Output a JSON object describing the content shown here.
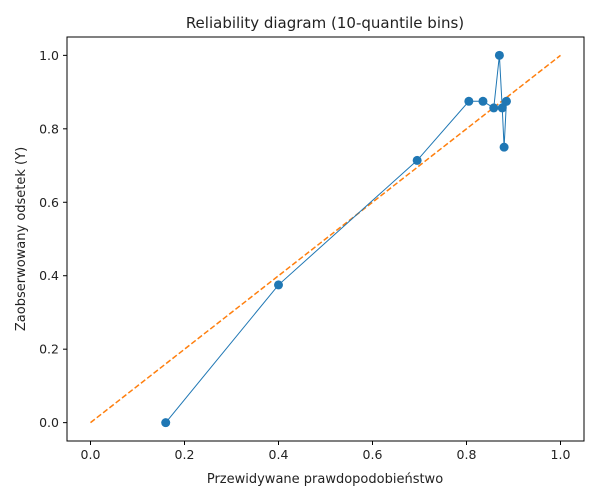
{
  "chart_data": {
    "type": "line",
    "title": "Reliability diagram (10-quantile bins)",
    "xlabel": "Przewidywane prawdopodobieństwo",
    "ylabel": "Zaobserwowany odsetek (Y)",
    "xlim": [
      -0.05,
      1.05
    ],
    "ylim": [
      -0.05,
      1.05
    ],
    "xticks": [
      "0.0",
      "0.2",
      "0.4",
      "0.6",
      "0.8",
      "1.0"
    ],
    "yticks": [
      "0.0",
      "0.2",
      "0.4",
      "0.6",
      "0.8",
      "1.0"
    ],
    "grid": false,
    "legend": "none",
    "series": [
      {
        "style": "line-markers",
        "color": "#1f77b4",
        "x": [
          0.16,
          0.4,
          0.695,
          0.805,
          0.835,
          0.858,
          0.87,
          0.876,
          0.88,
          0.885
        ],
        "y": [
          0.0,
          0.375,
          0.714,
          0.875,
          0.875,
          0.857,
          1.0,
          0.857,
          0.75,
          0.875
        ]
      },
      {
        "style": "dashed",
        "color": "#ff7f0e",
        "x": [
          0.0,
          1.0
        ],
        "y": [
          0.0,
          1.0
        ]
      }
    ]
  }
}
